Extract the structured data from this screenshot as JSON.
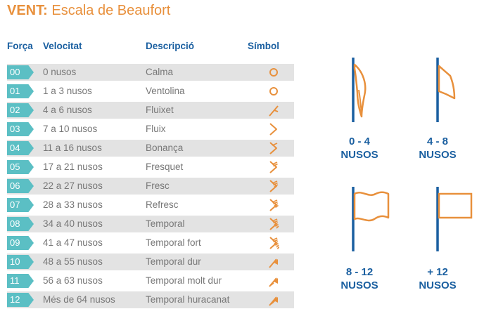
{
  "title": {
    "bold": "VENT:",
    "rest": " Escala de Beaufort"
  },
  "headers": {
    "forca": "Força",
    "velocitat": "Velocitat",
    "descripcio": "Descripció",
    "simbol": "Símbol"
  },
  "rows": [
    {
      "force": "00",
      "speed": "0 nusos",
      "desc": "Calma"
    },
    {
      "force": "01",
      "speed": "1 a 3 nusos",
      "desc": "Ventolina"
    },
    {
      "force": "02",
      "speed": "4 a 6 nusos",
      "desc": "Fluixet"
    },
    {
      "force": "03",
      "speed": "7 a 10 nusos",
      "desc": "Fluix"
    },
    {
      "force": "04",
      "speed": "11 a 16 nusos",
      "desc": "Bonança"
    },
    {
      "force": "05",
      "speed": "17 a 21 nusos",
      "desc": "Fresquet"
    },
    {
      "force": "06",
      "speed": "22 a 27 nusos",
      "desc": "Fresc"
    },
    {
      "force": "07",
      "speed": "28 a 33 nusos",
      "desc": "Refresc"
    },
    {
      "force": "08",
      "speed": "34 a 40 nusos",
      "desc": "Temporal"
    },
    {
      "force": "09",
      "speed": "41 a 47 nusos",
      "desc": "Temporal fort"
    },
    {
      "force": "10",
      "speed": "48 a 55 nusos",
      "desc": "Temporal dur"
    },
    {
      "force": "11",
      "speed": "56 a 63 nusos",
      "desc": "Temporal molt dur"
    },
    {
      "force": "12",
      "speed": "Més de 64 nusos",
      "desc": "Temporal huracanat"
    }
  ],
  "flags": [
    {
      "line1": "0 - 4",
      "line2": "NUSOS",
      "icon": "limp-flag-icon"
    },
    {
      "line1": "4 - 8",
      "line2": "NUSOS",
      "icon": "drooping-flag-icon"
    },
    {
      "line1": "8 - 12",
      "line2": "NUSOS",
      "icon": "waving-flag-icon"
    },
    {
      "line1": "+ 12",
      "line2": "NUSOS",
      "icon": "straight-flag-icon"
    }
  ],
  "colors": {
    "orange": "#e8903c",
    "blue": "#1a5fa0",
    "teal": "#5bbfc4",
    "row_shade": "#e3e3e3",
    "text_gray": "#777777"
  }
}
